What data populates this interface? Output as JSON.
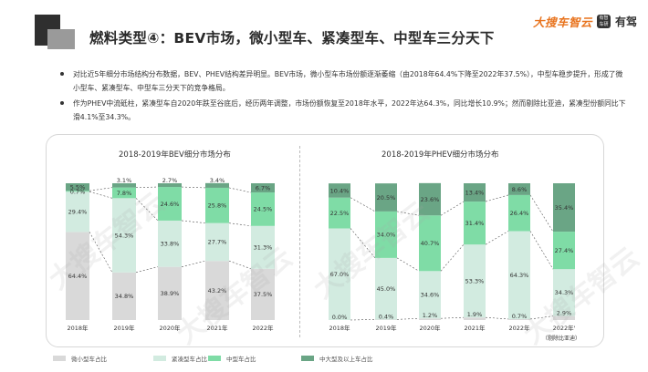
{
  "header": {
    "title": "燃料类型④：BEV市场，微小型车、紧凑型车、中型车三分天下",
    "brand_text": "大搜车智云",
    "badge_text": "有智 车研",
    "app_name": "有驾"
  },
  "bullets": [
    "对比近5年细分市场结构分布数据，BEV、PHEV结构差异明显。BEV市场，微小型车市场份额逐渐萎缩（由2018年64.4%下降至2022年37.5%），中型车稳步提升，形成了微小型车、紧凑型车、中型车三分天下的竞争格局。",
    "作为PHEV中流砥柱，紧凑型车自2020年跌至谷底后，经历两年调整，市场份额恢复至2018年水平，2022年达64.3%，同比增长10.9%；然而剔除比亚迪，紧凑型份额同比下滑4.1%至34.3%。"
  ],
  "watermark": "大搜车智云",
  "legend": [
    {
      "name": "微小型车占比",
      "color": "#d9d9d9"
    },
    {
      "name": "紧凑型车占比",
      "color": "#d2ebe0"
    },
    {
      "name": "中型车占比",
      "color": "#7fdca6"
    },
    {
      "name": "中大型及以上车占比",
      "color": "#6aa585"
    }
  ],
  "colors": {
    "micro": "#d9d9d9",
    "compact": "#d2ebe0",
    "mid": "#7fdca6",
    "large": "#6aa585",
    "connector": "#555555"
  },
  "chart_data": [
    {
      "type": "bar",
      "stacked": true,
      "title": "2018-2019年BEV细分市场分布",
      "categories": [
        "2018年",
        "2019年",
        "2020年",
        "2021年",
        "2022年"
      ],
      "series": [
        {
          "name": "微小型车占比",
          "values": [
            64.4,
            34.8,
            38.9,
            43.2,
            37.5
          ],
          "labels": [
            "64.4%",
            "34.8%",
            "38.9%",
            "43.2%",
            "37.5%"
          ]
        },
        {
          "name": "紧凑型车占比",
          "values": [
            29.4,
            54.3,
            33.8,
            27.7,
            31.3
          ],
          "labels": [
            "29.4%",
            "54.3%",
            "33.8%",
            "27.7%",
            "31.3%"
          ]
        },
        {
          "name": "中型车占比",
          "values": [
            0.7,
            7.8,
            24.6,
            25.8,
            24.5
          ],
          "labels": [
            "0.7%",
            "7.8%",
            "24.6%",
            "25.8%",
            "24.5%"
          ]
        },
        {
          "name": "中大型及以上车占比",
          "values": [
            5.5,
            3.1,
            2.7,
            3.4,
            6.7
          ],
          "labels": [
            "5.5%",
            "3.1%",
            "2.7%",
            "3.4%",
            "6.7%"
          ]
        }
      ],
      "ylim": [
        0,
        100
      ]
    },
    {
      "type": "bar",
      "stacked": true,
      "title": "2018-2019年PHEV细分市场分布",
      "categories": [
        "2018年",
        "2019年",
        "2020年",
        "2021年",
        "2022年",
        "2022年'"
      ],
      "note": "（剔除比亚迪）",
      "series": [
        {
          "name": "微小型车占比",
          "values": [
            0.0,
            0.4,
            1.2,
            1.9,
            0.7,
            2.9
          ],
          "labels": [
            "0.0%",
            "0.4%",
            "1.2%",
            "1.9%",
            "0.7%",
            "2.9%"
          ]
        },
        {
          "name": "紧凑型车占比",
          "values": [
            67.0,
            45.0,
            34.6,
            53.3,
            64.3,
            34.3
          ],
          "labels": [
            "67.0%",
            "45.0%",
            "34.6%",
            "53.3%",
            "64.3%",
            "34.3%"
          ]
        },
        {
          "name": "中型车占比",
          "values": [
            22.5,
            34.0,
            40.7,
            31.4,
            26.4,
            27.4
          ],
          "labels": [
            "22.5%",
            "34.0%",
            "40.7%",
            "31.4%",
            "26.4%",
            "27.4%"
          ]
        },
        {
          "name": "中大型及以上车占比",
          "values": [
            10.4,
            20.5,
            23.6,
            13.4,
            8.6,
            35.4
          ],
          "labels": [
            "10.4%",
            "20.5%",
            "23.6%",
            "13.4%",
            "8.6%",
            "35.4%"
          ]
        }
      ],
      "ylim": [
        0,
        100
      ]
    }
  ]
}
